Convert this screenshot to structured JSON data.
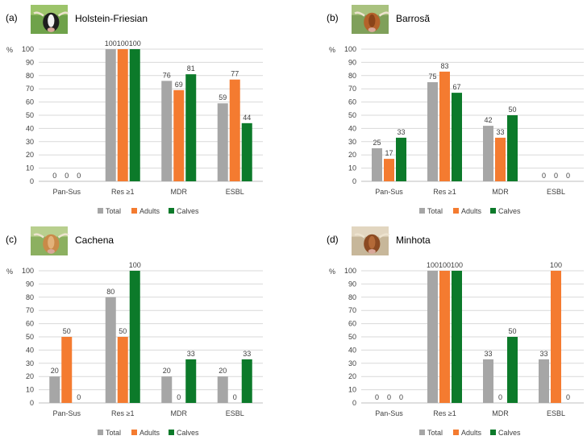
{
  "legend": {
    "total": "Total",
    "adults": "Adults",
    "calves": "Calves"
  },
  "colors": {
    "total": "#A6A6A6",
    "adults": "#F47B30",
    "calves": "#0C7A2A",
    "grid": "#D9D9D9",
    "axis": "#BFBFBF",
    "text": "#404040"
  },
  "chart_data": [
    {
      "type": "bar",
      "panel_label": "(a)",
      "title": "Holstein-Friesian",
      "ylabel": "%",
      "ylim": [
        0,
        100
      ],
      "yticks": [
        "0",
        "10",
        "20",
        "30",
        "40",
        "50",
        "60",
        "70",
        "80",
        "90",
        "100"
      ],
      "categories": [
        "Pan-Sus",
        "Res ≥1",
        "MDR",
        "ESBL"
      ],
      "series": [
        {
          "name": "Total",
          "values": [
            0,
            100,
            76,
            59
          ]
        },
        {
          "name": "Adults",
          "values": [
            0,
            100,
            69,
            77
          ]
        },
        {
          "name": "Calves",
          "values": [
            0,
            100,
            81,
            44
          ]
        }
      ]
    },
    {
      "type": "bar",
      "panel_label": "(b)",
      "title": "Barrosã",
      "ylabel": "%",
      "ylim": [
        0,
        100
      ],
      "yticks": [
        "0",
        "10",
        "20",
        "30",
        "40",
        "50",
        "60",
        "70",
        "80",
        "90",
        "100"
      ],
      "categories": [
        "Pan-Sus",
        "Res ≥1",
        "MDR",
        "ESBL"
      ],
      "series": [
        {
          "name": "Total",
          "values": [
            25,
            75,
            42,
            0
          ]
        },
        {
          "name": "Adults",
          "values": [
            17,
            83,
            33,
            0
          ]
        },
        {
          "name": "Calves",
          "values": [
            33,
            67,
            50,
            0
          ]
        }
      ]
    },
    {
      "type": "bar",
      "panel_label": "(c)",
      "title": "Cachena",
      "ylabel": "%",
      "ylim": [
        0,
        100
      ],
      "yticks": [
        "0",
        "10",
        "20",
        "30",
        "40",
        "50",
        "60",
        "70",
        "80",
        "90",
        "100"
      ],
      "categories": [
        "Pan-Sus",
        "Res ≥1",
        "MDR",
        "ESBL"
      ],
      "series": [
        {
          "name": "Total",
          "values": [
            20,
            80,
            20,
            20
          ]
        },
        {
          "name": "Adults",
          "values": [
            50,
            50,
            0,
            0
          ]
        },
        {
          "name": "Calves",
          "values": [
            0,
            100,
            33,
            33
          ]
        }
      ]
    },
    {
      "type": "bar",
      "panel_label": "(d)",
      "title": "Minhota",
      "ylabel": "%",
      "ylim": [
        0,
        100
      ],
      "yticks": [
        "0",
        "10",
        "20",
        "30",
        "40",
        "50",
        "60",
        "70",
        "80",
        "90",
        "100"
      ],
      "categories": [
        "Pan-Sus",
        "Res ≥1",
        "MDR",
        "ESBL"
      ],
      "series": [
        {
          "name": "Total",
          "values": [
            0,
            100,
            33,
            33
          ]
        },
        {
          "name": "Adults",
          "values": [
            0,
            100,
            0,
            100
          ]
        },
        {
          "name": "Calves",
          "values": [
            0,
            100,
            50,
            0
          ]
        }
      ]
    }
  ]
}
